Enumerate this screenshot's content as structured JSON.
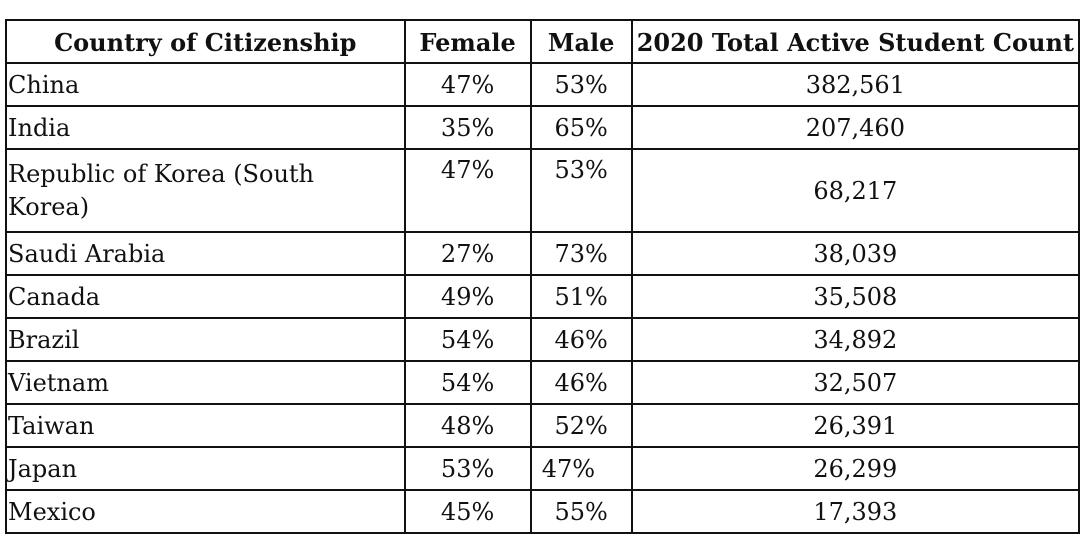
{
  "table": {
    "headers": {
      "country": "Country of Citizenship",
      "female": "Female",
      "male": "Male",
      "total": "2020 Total Active Student Count"
    },
    "rows": [
      {
        "country": "China",
        "female": "47%",
        "male": "53%",
        "total": "382,561"
      },
      {
        "country": "India",
        "female": "35%",
        "male": "65%",
        "total": "207,460"
      },
      {
        "country": "Republic of Korea (South Korea)",
        "female": "47%",
        "male": "53%",
        "total": "68,217"
      },
      {
        "country": "Saudi Arabia",
        "female": "27%",
        "male": "73%",
        "total": "38,039"
      },
      {
        "country": "Canada",
        "female": "49%",
        "male": "51%",
        "total": "35,508"
      },
      {
        "country": "Brazil",
        "female": "54%",
        "male": "46%",
        "total": "34,892"
      },
      {
        "country": "Vietnam",
        "female": "54%",
        "male": "46%",
        "total": "32,507"
      },
      {
        "country": "Taiwan",
        "female": "48%",
        "male": "52%",
        "total": "26,391"
      },
      {
        "country": "Japan",
        "female": "53%",
        "male": "47%",
        "total": "26,299"
      },
      {
        "country": "Mexico",
        "female": "45%",
        "male": "55%",
        "total": "17,393"
      }
    ]
  }
}
